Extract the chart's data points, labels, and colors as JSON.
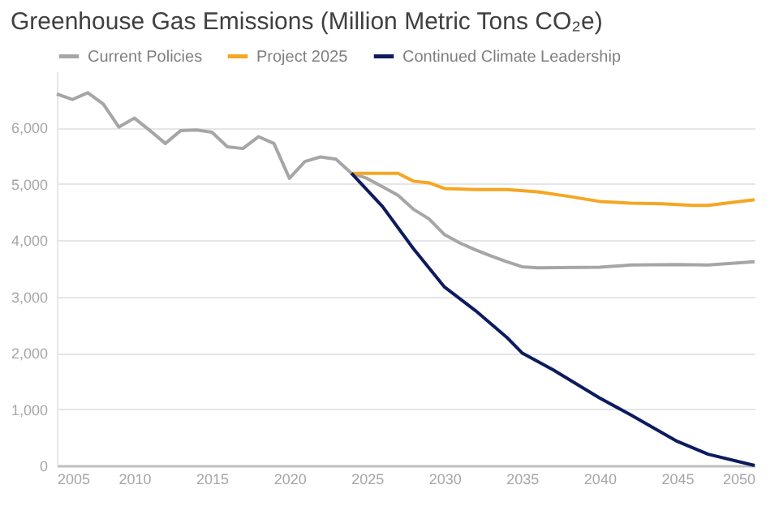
{
  "chart_data": {
    "type": "line",
    "title": "Greenhouse Gas Emissions (Million Metric Tons CO₂e)",
    "series": [
      {
        "name": "Current Policies",
        "color": "#a6a6a6",
        "x": [
          2005,
          2006,
          2007,
          2008,
          2009,
          2010,
          2011,
          2012,
          2013,
          2014,
          2015,
          2016,
          2017,
          2018,
          2019,
          2020,
          2021,
          2022,
          2023,
          2024,
          2025,
          2026,
          2027,
          2028,
          2029,
          2030,
          2031,
          2032,
          2033,
          2034,
          2035,
          2036,
          2040,
          2042,
          2045,
          2047,
          2050
        ],
        "values": [
          6600,
          6500,
          6620,
          6420,
          6010,
          6170,
          5950,
          5720,
          5950,
          5960,
          5920,
          5660,
          5630,
          5840,
          5720,
          5100,
          5400,
          5480,
          5440,
          5190,
          5100,
          4950,
          4800,
          4550,
          4380,
          4100,
          3950,
          3830,
          3720,
          3620,
          3530,
          3510,
          3520,
          3560,
          3570,
          3560,
          3620
        ]
      },
      {
        "name": "Project 2025",
        "color": "#f5a623",
        "x": [
          2024,
          2027,
          2028,
          2029,
          2030,
          2032,
          2034,
          2036,
          2038,
          2040,
          2042,
          2044,
          2046,
          2047,
          2050
        ],
        "values": [
          5190,
          5190,
          5050,
          5020,
          4920,
          4900,
          4900,
          4860,
          4780,
          4690,
          4660,
          4650,
          4620,
          4620,
          4720
        ]
      },
      {
        "name": "Continued Climate Leadership",
        "color": "#0d1b5e",
        "x": [
          2024,
          2026,
          2028,
          2030,
          2032,
          2034,
          2035,
          2037,
          2040,
          2042,
          2045,
          2047,
          2050
        ],
        "values": [
          5190,
          4600,
          3850,
          3170,
          2750,
          2280,
          2000,
          1700,
          1200,
          900,
          430,
          200,
          0
        ]
      }
    ],
    "xlim": [
      2005,
      2050
    ],
    "xticks": [
      2005,
      2010,
      2015,
      2020,
      2025,
      2030,
      2035,
      2040,
      2045,
      2050
    ],
    "ylim": [
      0,
      7000
    ],
    "yticks": [
      0,
      {
        "value": 1000,
        "label": "1,000"
      },
      {
        "value": 2000,
        "label": "2,000"
      },
      {
        "value": 3000,
        "label": "3,000"
      },
      {
        "value": 4000,
        "label": "4,000"
      },
      {
        "value": 5000,
        "label": "5,000"
      },
      {
        "value": 6000,
        "label": "6,000"
      }
    ],
    "grid": "y",
    "legend": "top left",
    "line_style": "solid"
  }
}
